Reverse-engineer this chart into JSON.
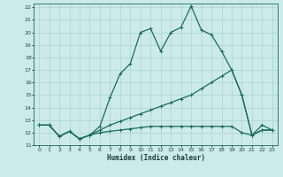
{
  "xlabel": "Humidex (Indice chaleur)",
  "bg_color": "#cceaea",
  "grid_color": "#aad4d4",
  "line_color": "#1a6b5a",
  "xlim": [
    0,
    23
  ],
  "ylim": [
    11,
    22.3
  ],
  "xtick_labels": [
    "0",
    "1",
    "2",
    "3",
    "4",
    "5",
    "6",
    "7",
    "8",
    "9",
    "10",
    "11",
    "12",
    "13",
    "14",
    "15",
    "16",
    "17",
    "18",
    "19",
    "20",
    "21",
    "22",
    "23"
  ],
  "yticks": [
    11,
    12,
    13,
    14,
    15,
    16,
    17,
    18,
    19,
    20,
    21,
    22
  ],
  "line1_x": [
    0,
    1,
    2,
    3,
    4,
    5,
    6,
    7,
    8,
    9,
    10,
    11,
    12,
    13,
    14,
    15,
    16,
    17,
    18,
    19,
    20,
    21,
    22,
    23
  ],
  "line1_y": [
    12.6,
    12.6,
    11.7,
    12.1,
    11.5,
    11.8,
    12.5,
    14.8,
    16.7,
    17.5,
    20.0,
    20.3,
    18.5,
    20.0,
    20.4,
    22.1,
    20.2,
    19.8,
    18.5,
    17.0,
    15.0,
    11.8,
    12.6,
    12.2
  ],
  "line1_markers": [
    0,
    1,
    2,
    3,
    4,
    5,
    6,
    7,
    8,
    9,
    10,
    11,
    12,
    13,
    14,
    15,
    16,
    17,
    18,
    19,
    20,
    21,
    22,
    23
  ],
  "line2_x": [
    0,
    1,
    2,
    3,
    4,
    5,
    6,
    7,
    8,
    9,
    10,
    11,
    12,
    13,
    14,
    15,
    16,
    17,
    18,
    19,
    20,
    21,
    22,
    23
  ],
  "line2_y": [
    12.6,
    12.6,
    11.7,
    12.1,
    11.5,
    11.8,
    12.2,
    12.6,
    12.9,
    13.2,
    13.5,
    13.8,
    14.1,
    14.4,
    14.7,
    15.0,
    15.5,
    16.0,
    16.5,
    17.0,
    15.0,
    11.8,
    12.2,
    12.2
  ],
  "line3_x": [
    0,
    1,
    2,
    3,
    4,
    5,
    6,
    7,
    8,
    9,
    10,
    11,
    12,
    13,
    14,
    15,
    16,
    17,
    18,
    19,
    20,
    21,
    22,
    23
  ],
  "line3_y": [
    12.6,
    12.6,
    11.7,
    12.1,
    11.5,
    11.8,
    12.0,
    12.1,
    12.2,
    12.3,
    12.4,
    12.5,
    12.5,
    12.5,
    12.5,
    12.5,
    12.5,
    12.5,
    12.5,
    12.5,
    12.0,
    11.8,
    12.2,
    12.2
  ]
}
